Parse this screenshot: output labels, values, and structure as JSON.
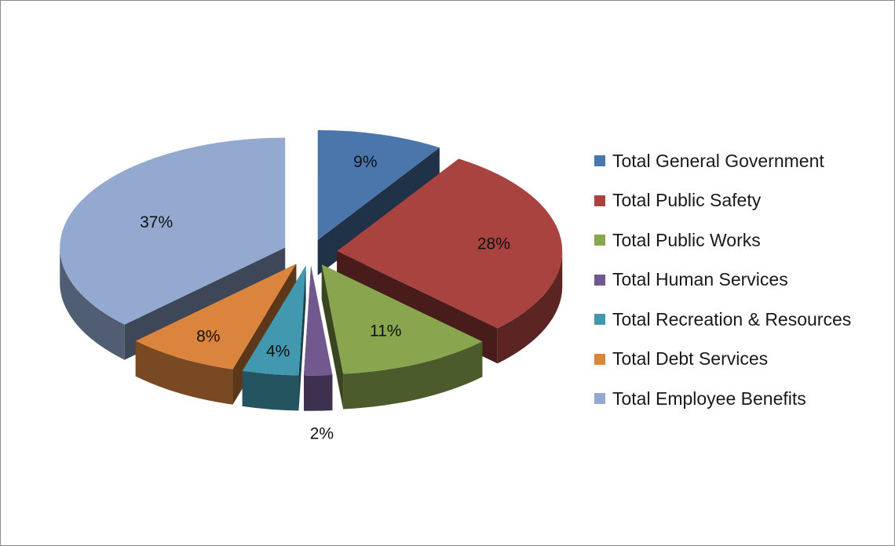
{
  "chart_data": {
    "type": "pie",
    "title": "",
    "categories": [
      "Total General Government",
      "Total Public Safety",
      "Total Public Works",
      "Total Human Services",
      "Total Recreation & Resources",
      "Total Debt Services",
      "Total Employee Benefits"
    ],
    "values": [
      9,
      28,
      11,
      2,
      4,
      8,
      37
    ],
    "data_labels": [
      "9%",
      "28%",
      "11%",
      "2%",
      "4%",
      "8%",
      "37%"
    ],
    "colors": [
      "#4a76ac",
      "#a84340",
      "#89a54e",
      "#71588f",
      "#4198af",
      "#db843d",
      "#93a9cf"
    ],
    "legend_position": "right",
    "exploded": true,
    "style": "3d"
  }
}
